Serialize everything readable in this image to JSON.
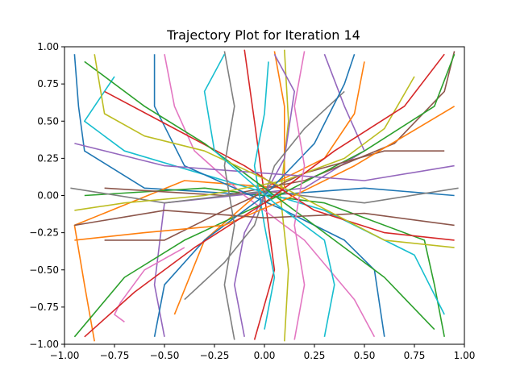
{
  "chart_data": {
    "type": "line",
    "title": "Trajectory Plot for Iteration 14",
    "xlabel": "",
    "ylabel": "",
    "xlim": [
      -1.0,
      1.0
    ],
    "ylim": [
      -1.0,
      1.0
    ],
    "xticks": [
      {
        "value": -1.0,
        "label": "−1.00"
      },
      {
        "value": -0.75,
        "label": "−0.75"
      },
      {
        "value": -0.5,
        "label": "−0.50"
      },
      {
        "value": -0.25,
        "label": "−0.25"
      },
      {
        "value": 0.0,
        "label": "0.00"
      },
      {
        "value": 0.25,
        "label": "0.25"
      },
      {
        "value": 0.5,
        "label": "0.50"
      },
      {
        "value": 0.75,
        "label": "0.75"
      },
      {
        "value": 1.0,
        "label": "1.00"
      }
    ],
    "yticks": [
      {
        "value": -1.0,
        "label": "−1.00"
      },
      {
        "value": -0.75,
        "label": "−0.75"
      },
      {
        "value": -0.5,
        "label": "−0.50"
      },
      {
        "value": -0.25,
        "label": "−0.25"
      },
      {
        "value": 0.0,
        "label": "0.00"
      },
      {
        "value": 0.25,
        "label": "0.25"
      },
      {
        "value": 0.5,
        "label": "0.50"
      },
      {
        "value": 0.75,
        "label": "0.75"
      },
      {
        "value": 1.0,
        "label": "1.00"
      }
    ],
    "grid": false,
    "legend": "none",
    "colors": [
      "#1f77b4",
      "#ff7f0e",
      "#2ca02c",
      "#d62728",
      "#9467bd",
      "#8c564b",
      "#e377c2",
      "#7f7f7f",
      "#bcbd22",
      "#17becf"
    ],
    "series": [
      {
        "color_index": 0,
        "points": [
          [
            -0.95,
            0.95
          ],
          [
            -0.93,
            0.6
          ],
          [
            -0.9,
            0.3
          ],
          [
            -0.6,
            0.05
          ],
          [
            0.0,
            0.0
          ],
          [
            0.5,
            0.05
          ],
          [
            0.95,
            0.0
          ]
        ]
      },
      {
        "color_index": 1,
        "points": [
          [
            -0.85,
            -0.98
          ],
          [
            -0.9,
            -0.6
          ],
          [
            -0.95,
            -0.2
          ],
          [
            -0.4,
            0.1
          ],
          [
            0.1,
            0.05
          ],
          [
            0.1,
            0.6
          ],
          [
            0.05,
            0.97
          ]
        ]
      },
      {
        "color_index": 2,
        "points": [
          [
            0.9,
            -0.95
          ],
          [
            0.85,
            -0.6
          ],
          [
            0.8,
            -0.3
          ],
          [
            0.3,
            -0.05
          ],
          [
            -0.3,
            0.05
          ],
          [
            -0.9,
            0.0
          ]
        ]
      },
      {
        "color_index": 3,
        "points": [
          [
            -0.1,
            0.98
          ],
          [
            -0.05,
            0.5
          ],
          [
            0.0,
            0.0
          ],
          [
            0.05,
            -0.5
          ],
          [
            -0.05,
            -0.97
          ]
        ]
      },
      {
        "color_index": 4,
        "points": [
          [
            0.3,
            0.95
          ],
          [
            0.4,
            0.6
          ],
          [
            0.5,
            0.3
          ],
          [
            0.2,
            0.05
          ],
          [
            -0.5,
            -0.05
          ],
          [
            -0.55,
            -0.6
          ],
          [
            -0.5,
            -0.95
          ]
        ]
      },
      {
        "color_index": 5,
        "points": [
          [
            0.95,
            0.97
          ],
          [
            0.9,
            0.7
          ],
          [
            0.65,
            0.35
          ],
          [
            0.2,
            0.1
          ],
          [
            -0.2,
            0.0
          ],
          [
            -0.8,
            0.05
          ]
        ]
      },
      {
        "color_index": 6,
        "points": [
          [
            -0.5,
            0.95
          ],
          [
            -0.45,
            0.6
          ],
          [
            -0.35,
            0.3
          ],
          [
            -0.1,
            0.0
          ],
          [
            0.2,
            -0.3
          ],
          [
            0.45,
            -0.7
          ],
          [
            0.55,
            -0.95
          ]
        ]
      },
      {
        "color_index": 7,
        "points": [
          [
            -0.97,
            0.05
          ],
          [
            -0.5,
            -0.05
          ],
          [
            0.0,
            0.03
          ],
          [
            0.5,
            -0.05
          ],
          [
            0.97,
            0.05
          ]
        ]
      },
      {
        "color_index": 8,
        "points": [
          [
            0.1,
            -0.98
          ],
          [
            0.12,
            -0.5
          ],
          [
            0.08,
            0.0
          ],
          [
            0.12,
            0.5
          ],
          [
            0.1,
            0.98
          ]
        ]
      },
      {
        "color_index": 9,
        "points": [
          [
            -0.75,
            0.8
          ],
          [
            -0.9,
            0.5
          ],
          [
            -0.7,
            0.3
          ],
          [
            -0.2,
            0.1
          ],
          [
            0.3,
            -0.1
          ],
          [
            0.75,
            -0.4
          ],
          [
            0.9,
            -0.8
          ]
        ]
      },
      {
        "color_index": 0,
        "points": [
          [
            0.6,
            -0.95
          ],
          [
            0.55,
            -0.5
          ],
          [
            0.4,
            -0.3
          ],
          [
            0.1,
            -0.1
          ],
          [
            -0.4,
            0.2
          ],
          [
            -0.55,
            0.6
          ],
          [
            -0.55,
            0.95
          ]
        ]
      },
      {
        "color_index": 1,
        "points": [
          [
            0.5,
            0.9
          ],
          [
            0.45,
            0.55
          ],
          [
            0.3,
            0.25
          ],
          [
            0.0,
            0.05
          ],
          [
            -0.3,
            -0.3
          ],
          [
            -0.45,
            -0.8
          ]
        ]
      },
      {
        "color_index": 2,
        "points": [
          [
            -0.95,
            -0.95
          ],
          [
            -0.7,
            -0.55
          ],
          [
            -0.4,
            -0.3
          ],
          [
            0.0,
            -0.05
          ],
          [
            0.5,
            0.3
          ],
          [
            0.85,
            0.6
          ],
          [
            0.95,
            0.95
          ]
        ]
      },
      {
        "color_index": 3,
        "points": [
          [
            0.95,
            -0.3
          ],
          [
            0.6,
            -0.25
          ],
          [
            0.25,
            -0.1
          ],
          [
            -0.1,
            0.2
          ],
          [
            -0.45,
            0.45
          ],
          [
            -0.8,
            0.7
          ]
        ]
      },
      {
        "color_index": 4,
        "points": [
          [
            -0.1,
            -0.95
          ],
          [
            -0.15,
            -0.6
          ],
          [
            -0.1,
            -0.25
          ],
          [
            0.1,
            0.25
          ],
          [
            0.15,
            0.7
          ],
          [
            0.05,
            0.95
          ]
        ]
      },
      {
        "color_index": 5,
        "points": [
          [
            -0.8,
            -0.3
          ],
          [
            -0.5,
            -0.3
          ],
          [
            -0.2,
            -0.1
          ],
          [
            0.2,
            0.15
          ],
          [
            0.6,
            0.3
          ],
          [
            0.9,
            0.3
          ]
        ]
      },
      {
        "color_index": 6,
        "points": [
          [
            -0.7,
            -0.85
          ],
          [
            -0.75,
            -0.8
          ],
          [
            -0.72,
            -0.72
          ],
          [
            -0.6,
            -0.5
          ],
          [
            -0.4,
            -0.35
          ]
        ]
      },
      {
        "color_index": 7,
        "points": [
          [
            0.4,
            0.7
          ],
          [
            0.2,
            0.45
          ],
          [
            0.05,
            0.2
          ],
          [
            -0.05,
            -0.2
          ],
          [
            -0.2,
            -0.45
          ],
          [
            -0.4,
            -0.7
          ]
        ]
      },
      {
        "color_index": 8,
        "points": [
          [
            0.75,
            0.8
          ],
          [
            0.6,
            0.45
          ],
          [
            0.4,
            0.25
          ],
          [
            0.1,
            0.1
          ],
          [
            -0.3,
            0.0
          ],
          [
            -0.7,
            -0.05
          ],
          [
            -0.95,
            -0.1
          ]
        ]
      },
      {
        "color_index": 9,
        "points": [
          [
            0.0,
            -0.9
          ],
          [
            0.05,
            -0.55
          ],
          [
            0.0,
            -0.2
          ],
          [
            -0.05,
            0.2
          ],
          [
            0.0,
            0.55
          ],
          [
            0.02,
            0.9
          ]
        ]
      },
      {
        "color_index": 0,
        "points": [
          [
            -0.55,
            -0.95
          ],
          [
            -0.5,
            -0.6
          ],
          [
            -0.3,
            -0.3
          ],
          [
            0.0,
            0.0
          ],
          [
            0.25,
            0.35
          ],
          [
            0.4,
            0.75
          ],
          [
            0.45,
            0.95
          ]
        ]
      },
      {
        "color_index": 1,
        "points": [
          [
            0.95,
            0.6
          ],
          [
            0.7,
            0.4
          ],
          [
            0.45,
            0.2
          ],
          [
            0.15,
            0.0
          ],
          [
            -0.2,
            -0.2
          ],
          [
            -0.6,
            -0.25
          ],
          [
            -0.95,
            -0.3
          ]
        ]
      },
      {
        "color_index": 2,
        "points": [
          [
            -0.9,
            0.9
          ],
          [
            -0.6,
            0.6
          ],
          [
            -0.3,
            0.35
          ],
          [
            0.0,
            0.05
          ],
          [
            0.3,
            -0.25
          ],
          [
            0.6,
            -0.55
          ],
          [
            0.85,
            -0.9
          ]
        ]
      },
      {
        "color_index": 3,
        "points": [
          [
            0.9,
            0.95
          ],
          [
            0.7,
            0.6
          ],
          [
            0.35,
            0.3
          ],
          [
            0.0,
            -0.05
          ],
          [
            -0.35,
            -0.35
          ],
          [
            -0.65,
            -0.65
          ],
          [
            -0.9,
            -0.95
          ]
        ]
      },
      {
        "color_index": 4,
        "points": [
          [
            -0.95,
            0.35
          ],
          [
            -0.5,
            0.2
          ],
          [
            0.0,
            0.15
          ],
          [
            0.5,
            0.1
          ],
          [
            0.95,
            0.2
          ]
        ]
      },
      {
        "color_index": 5,
        "points": [
          [
            -0.95,
            -0.2
          ],
          [
            -0.5,
            -0.1
          ],
          [
            0.0,
            -0.15
          ],
          [
            0.5,
            -0.12
          ],
          [
            0.95,
            -0.2
          ]
        ]
      },
      {
        "color_index": 6,
        "points": [
          [
            0.2,
            0.97
          ],
          [
            0.15,
            0.6
          ],
          [
            0.2,
            0.2
          ],
          [
            0.15,
            -0.2
          ],
          [
            0.2,
            -0.6
          ],
          [
            0.15,
            -0.97
          ]
        ]
      },
      {
        "color_index": 7,
        "points": [
          [
            -0.2,
            0.97
          ],
          [
            -0.15,
            0.6
          ],
          [
            -0.2,
            0.2
          ],
          [
            -0.15,
            -0.2
          ],
          [
            -0.2,
            -0.6
          ],
          [
            -0.15,
            -0.97
          ]
        ]
      },
      {
        "color_index": 8,
        "points": [
          [
            -0.85,
            0.95
          ],
          [
            -0.8,
            0.55
          ],
          [
            -0.6,
            0.4
          ],
          [
            -0.3,
            0.3
          ],
          [
            0.1,
            0.05
          ],
          [
            0.6,
            -0.3
          ],
          [
            0.95,
            -0.35
          ]
        ]
      },
      {
        "color_index": 9,
        "points": [
          [
            0.3,
            -0.95
          ],
          [
            0.35,
            -0.6
          ],
          [
            0.3,
            -0.3
          ],
          [
            0.05,
            -0.05
          ],
          [
            -0.25,
            0.3
          ],
          [
            -0.3,
            0.7
          ],
          [
            -0.2,
            0.95
          ]
        ]
      }
    ]
  }
}
